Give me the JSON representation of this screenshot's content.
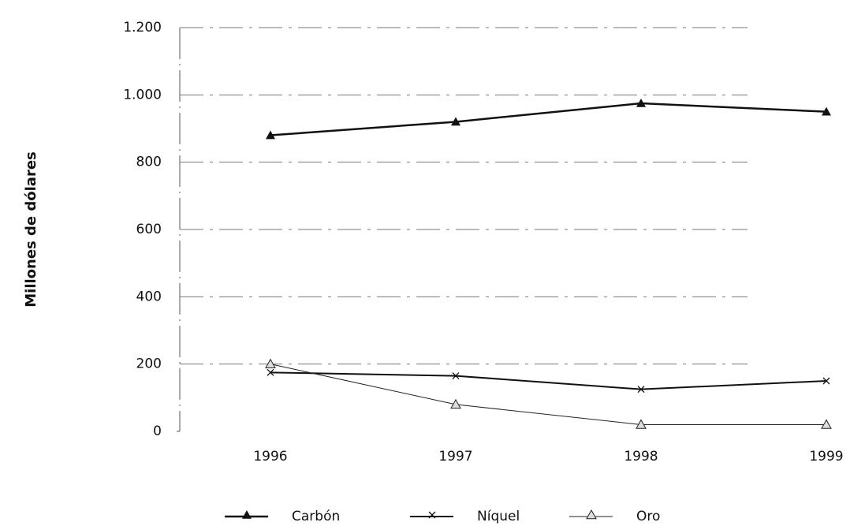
{
  "chart_data": {
    "type": "line",
    "y_label": "Millones de dólares",
    "categories": [
      "1996",
      "1997",
      "1998",
      "1999"
    ],
    "series": [
      {
        "name": "Carbón",
        "color": "#111111",
        "marker": "triangle-filled",
        "line_width": 2.5,
        "values": [
          880,
          920,
          975,
          950
        ]
      },
      {
        "name": "Níquel",
        "color": "#111111",
        "marker": "x",
        "line_width": 2,
        "values": [
          175,
          165,
          125,
          150
        ]
      },
      {
        "name": "Oro",
        "color": "#222222",
        "marker": "triangle-open",
        "line_width": 1,
        "values": [
          200,
          80,
          20,
          20
        ]
      }
    ],
    "ylim": [
      0,
      1200
    ],
    "yticks": [
      0,
      200,
      400,
      600,
      800,
      {
        "value": 1000,
        "label": "1.000"
      },
      {
        "value": 1200,
        "label": "1.200"
      }
    ],
    "grid": true,
    "legend": "bottom"
  }
}
